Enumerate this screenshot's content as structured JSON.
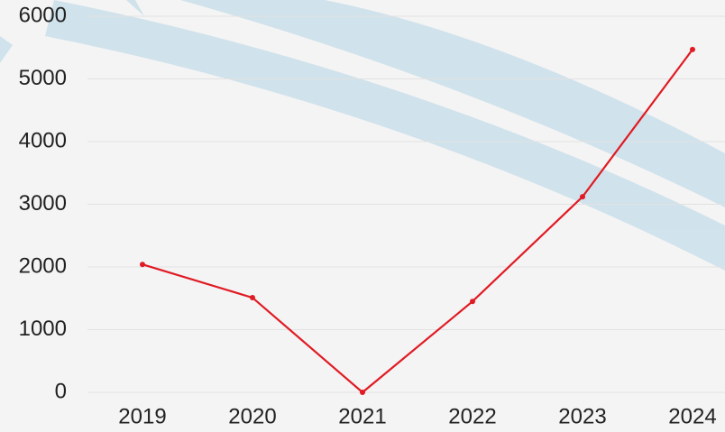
{
  "chart_data": {
    "type": "line",
    "categories": [
      "2019",
      "2020",
      "2021",
      "2022",
      "2023",
      "2024"
    ],
    "series": [
      {
        "name": "Series",
        "color": "#e01b24",
        "values": [
          2040,
          1510,
          0,
          1450,
          3120,
          5470
        ]
      }
    ],
    "ylim": [
      0,
      6000
    ],
    "yticks": [
      0,
      1000,
      2000,
      3000,
      4000,
      5000,
      6000
    ],
    "grid": true
  }
}
